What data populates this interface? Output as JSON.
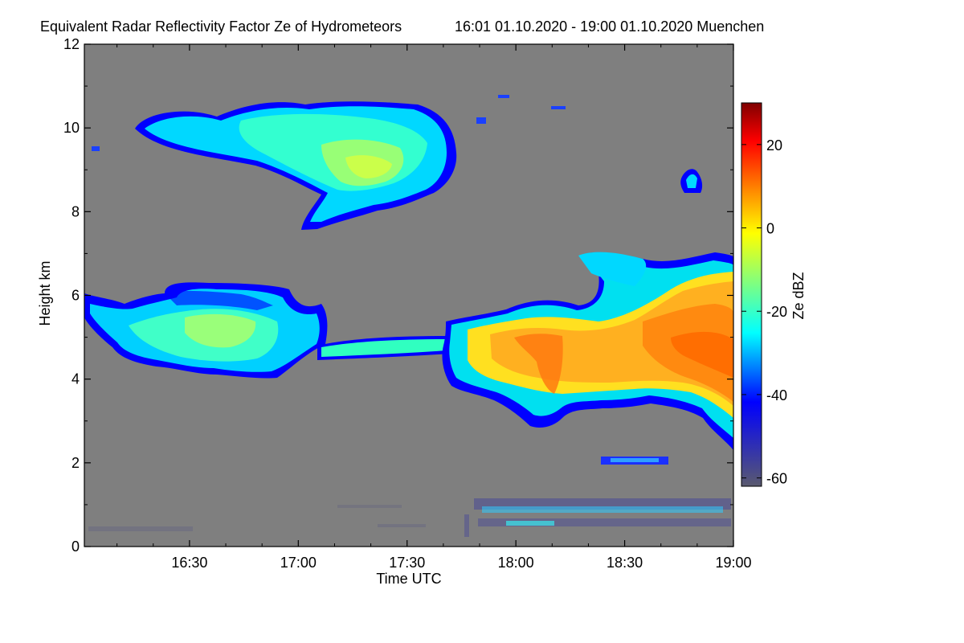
{
  "chart_data": {
    "type": "heatmap",
    "title": "Equivalent Radar Reflectivity Factor Ze of Hydrometeors",
    "subtitle": "16:01 01.10.2020 - 19:00 01.10.2020 Muenchen",
    "xlabel": "Time UTC",
    "ylabel": "Height km",
    "colorbar_label": "Ze dBZ",
    "x_ticks": [
      "16:30",
      "17:00",
      "17:30",
      "18:00",
      "18:30",
      "19:00"
    ],
    "y_ticks": [
      "0",
      "2",
      "4",
      "6",
      "8",
      "10",
      "12"
    ],
    "colorbar_ticks": [
      "20",
      "0",
      "-20",
      "-40",
      "-60"
    ],
    "xlim": [
      "16:01",
      "19:00"
    ],
    "ylim": [
      0,
      12
    ],
    "zlim": [
      -62,
      30
    ],
    "no_data_color": "#7f7f7f",
    "colormap": [
      "#5a5a6e",
      "#0000ff",
      "#00ffff",
      "#ffff00",
      "#ff8000",
      "#ff0000",
      "#800000"
    ],
    "features": [
      {
        "desc": "upper cirrus layer",
        "time_range": [
          "16:17",
          "17:46"
        ],
        "height_range_km": [
          7.9,
          10.6
        ],
        "ze_dbz_range": [
          -35,
          -15
        ]
      },
      {
        "desc": "mid-level layer",
        "time_range": [
          "16:01",
          "16:51"
        ],
        "height_range_km": [
          3.9,
          6.3
        ],
        "ze_dbz_range": [
          -35,
          -15
        ]
      },
      {
        "desc": "thin connecting band",
        "time_range": [
          "17:08",
          "17:42"
        ],
        "height_range_km": [
          4.4,
          4.9
        ],
        "ze_dbz_range": [
          -30,
          -15
        ]
      },
      {
        "desc": "main precipitating cloud",
        "time_range": [
          "17:42",
          "19:00"
        ],
        "height_range_km": [
          2.4,
          7.1
        ],
        "ze_dbz_range": [
          -40,
          10
        ]
      },
      {
        "desc": "low-level weak returns",
        "time_range": [
          "17:50",
          "19:00"
        ],
        "height_range_km": [
          0.1,
          1.2
        ],
        "ze_dbz_range": [
          -60,
          -30
        ]
      }
    ]
  }
}
